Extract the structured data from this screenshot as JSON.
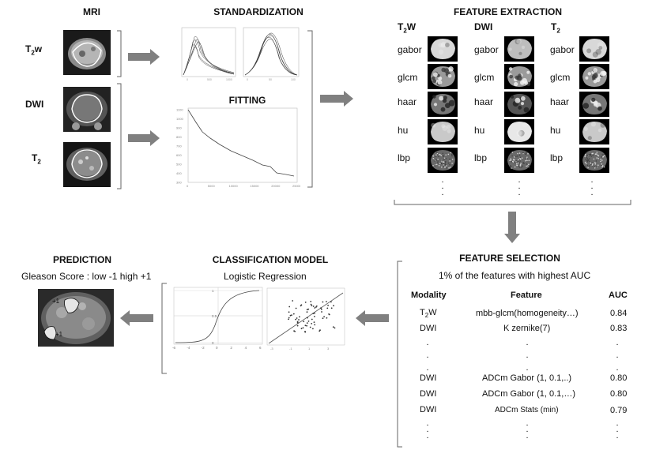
{
  "mri": {
    "title": "MRI",
    "rows": [
      {
        "label_main": "T",
        "label_sub": "2",
        "label_tail": "w"
      },
      {
        "label_main": "DWI",
        "label_sub": "",
        "label_tail": ""
      },
      {
        "label_main": "T",
        "label_sub": "2",
        "label_tail": ""
      }
    ]
  },
  "standardization": {
    "title": "STANDARDIZATION"
  },
  "fitting": {
    "title": "FITTING",
    "y_ticks": [
      "1100",
      "1000",
      "900",
      "800",
      "700",
      "600",
      "500",
      "400",
      "300"
    ],
    "x_ticks": [
      "0",
      "5000",
      "10000",
      "15000",
      "20000",
      "25000"
    ]
  },
  "feature_extraction": {
    "title": "FEATURE EXTRACTION",
    "columns": [
      {
        "main": "T",
        "sub": "2",
        "tail": "W"
      },
      {
        "main": "DWI",
        "sub": "",
        "tail": ""
      },
      {
        "main": "T",
        "sub": "2",
        "tail": ""
      }
    ],
    "features": [
      "gabor",
      "glcm",
      "haar",
      "hu",
      "lbp"
    ]
  },
  "feature_selection": {
    "title": "FEATURE SELECTION",
    "subtitle": "1% of  the features with highest AUC",
    "headers": {
      "modality": "Modality",
      "feature": "Feature",
      "auc": "AUC"
    },
    "rows_top": [
      {
        "modality_main": "T",
        "modality_sub": "2",
        "modality_tail": "W",
        "feature": "mbb-glcm(homogeneity…)",
        "auc": "0.84"
      },
      {
        "modality_main": "DWI",
        "modality_sub": "",
        "modality_tail": "",
        "feature": "K zernike(7)",
        "auc": "0.83"
      }
    ],
    "rows_bottom": [
      {
        "modality": "DWI",
        "feature": "ADCm Gabor (1, 0.1,..)",
        "auc": "0.80"
      },
      {
        "modality": "DWI",
        "feature": "ADCm Gabor (1, 0.1,…)",
        "auc": "0.80"
      },
      {
        "modality": "DWI",
        "feature": "ADCm Stats (min)",
        "auc": "0.79"
      }
    ]
  },
  "classification": {
    "title": "CLASSIFICATION MODEL",
    "subtitle": "Logistic Regression",
    "sigmoid_x_ticks": [
      "-6",
      "-4",
      "-2",
      "0",
      "2",
      "4",
      "6"
    ],
    "sigmoid_y_ticks": [
      "1",
      "0.5",
      "0"
    ]
  },
  "prediction": {
    "title": "PREDICTION",
    "subtitle": "Gleason Score : low -1  high +1",
    "markers": [
      "+1",
      "+1"
    ]
  },
  "colors": {
    "arrow": "#808080",
    "frame": "#666666"
  }
}
